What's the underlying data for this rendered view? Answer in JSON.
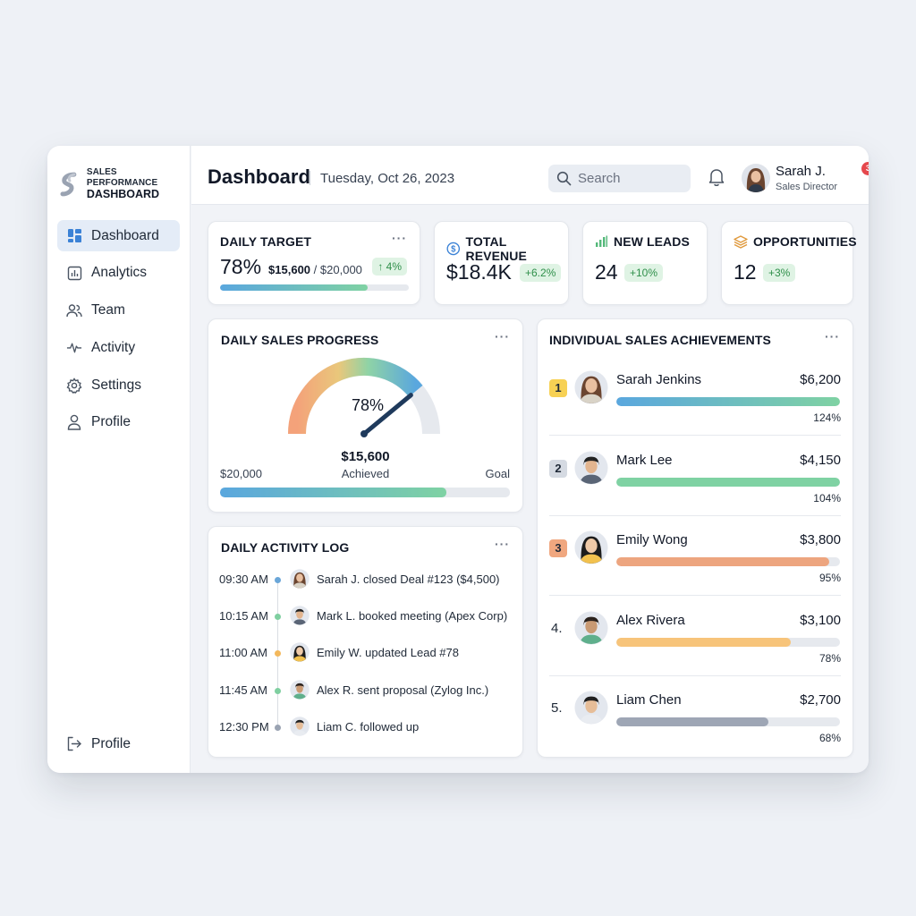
{
  "brand": {
    "line1": "SALES PERFORMANCE",
    "line2": "DASHBOARD"
  },
  "sidebar": {
    "items": [
      {
        "label": "Dashboard",
        "icon": "dashboard-grid-icon"
      },
      {
        "label": "Analytics",
        "icon": "bar-chart-icon"
      },
      {
        "label": "Team",
        "icon": "users-icon"
      },
      {
        "label": "Activity",
        "icon": "pulse-icon"
      },
      {
        "label": "Settings",
        "icon": "gear-icon"
      },
      {
        "label": "Profile",
        "icon": "user-icon"
      }
    ],
    "bottom": {
      "label": "Profile",
      "icon": "logout-icon"
    }
  },
  "header": {
    "title": "Dashboard",
    "date": "Tuesday, Oct 26, 2023",
    "search_placeholder": "Search",
    "notifications": "3",
    "user_name": "Sarah J.",
    "user_role": "Sales Director"
  },
  "kpis": {
    "daily_target": {
      "title": "DAILY TARGET",
      "percent": "78%",
      "achieved": "$15,600",
      "separator": "/",
      "goal": "$20,000",
      "change": "↑ 4%",
      "progress": 0.78
    },
    "total_revenue": {
      "title": "TOTAL REVENUE",
      "value": "$18.4K",
      "change": "+6.2%"
    },
    "new_leads": {
      "title": "NEW LEADS",
      "value": "24",
      "change": "+10%"
    },
    "opportunities": {
      "title": "OPPORTUNITIES",
      "value": "12",
      "change": "+3%"
    }
  },
  "daily_progress": {
    "title": "DAILY SALES PROGRESS",
    "percent_label": "78%",
    "achieved_value": "$15,600",
    "achieved_label": "Achieved",
    "left_label": "$20,000",
    "right_label": "Goal",
    "progress": 0.78
  },
  "activity_log": {
    "title": "DAILY ACTIVITY LOG",
    "entries": [
      {
        "time": "09:30 AM",
        "text": "Sarah J. closed Deal #123 ($4,500)",
        "dot_color": "#6aa6d8"
      },
      {
        "time": "10:15 AM",
        "text": "Mark L. booked meeting (Apex Corp)",
        "dot_color": "#7fcfa0"
      },
      {
        "time": "11:00 AM",
        "text": "Emily W. updated Lead #78",
        "dot_color": "#f3b85c"
      },
      {
        "time": "11:45 AM",
        "text": "Alex R. sent proposal (Zylog Inc.)",
        "dot_color": "#7fcfa0"
      },
      {
        "time": "12:30 PM",
        "text": "Liam C. followed up",
        "dot_color": "#9aa3b2"
      }
    ]
  },
  "leaderboard": {
    "title": "INDIVIDUAL SALES ACHIEVEMENTS",
    "entries": [
      {
        "rank": "1",
        "name": "Sarah Jenkins",
        "amount": "$6,200",
        "percent": "124%",
        "progress": 1.0,
        "badge_color": "#f7d154",
        "bar_color": "linear-gradient(90deg,#5aa7de,#7fd2a3)"
      },
      {
        "rank": "2",
        "name": "Mark Lee",
        "amount": "$4,150",
        "percent": "104%",
        "progress": 1.0,
        "badge_color": "#d5dae2",
        "bar_color": "#7fd2a3"
      },
      {
        "rank": "3",
        "name": "Emily Wong",
        "amount": "$3,800",
        "percent": "95%",
        "progress": 0.95,
        "badge_color": "#f0a77f",
        "bar_color": "#eda57f"
      },
      {
        "rank": "4.",
        "name": "Alex Rivera",
        "amount": "$3,100",
        "percent": "78%",
        "progress": 0.78,
        "badge_color": "",
        "bar_color": "#f7c47a"
      },
      {
        "rank": "5.",
        "name": "Liam Chen",
        "amount": "$2,700",
        "percent": "68%",
        "progress": 0.68,
        "badge_color": "",
        "bar_color": "#9ea6b5"
      }
    ]
  },
  "colors": {
    "accent": "#4a90d9",
    "positive": "#2f8f4a",
    "progress_gradient": "linear-gradient(90deg,#5aa7de,#7fd2a3)"
  }
}
